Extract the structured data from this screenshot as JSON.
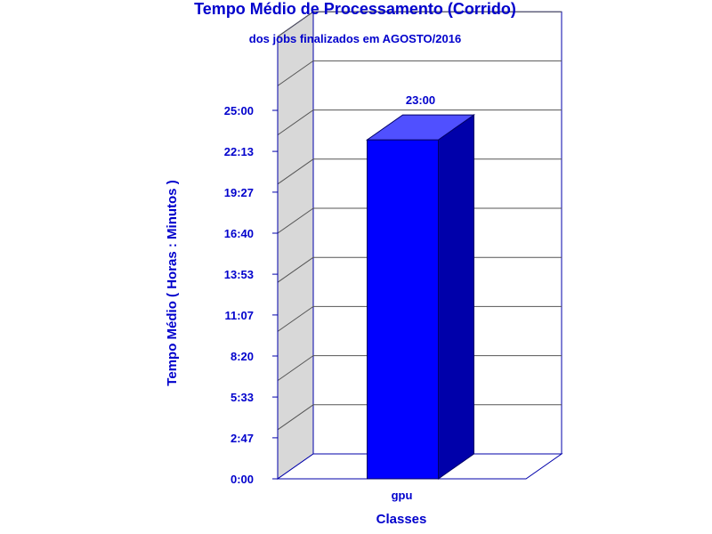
{
  "chart_data": {
    "type": "bar",
    "title": "Tempo Médio de Processamento (Corrido)",
    "subtitle": "dos jobs finalizados em AGOSTO/2016",
    "xlabel": "Classes",
    "ylabel": "Tempo Médio ( Horas : Minutos )",
    "categories": [
      "gpu"
    ],
    "values": [
      23.0
    ],
    "value_labels": [
      "23:00"
    ],
    "y_ticks": [
      0,
      2.7833,
      5.55,
      8.3333,
      11.1167,
      13.8833,
      16.6667,
      19.45,
      22.2167,
      25.0
    ],
    "y_tick_labels": [
      "0:00",
      "2:47",
      "5:33",
      "8:20",
      "11:07",
      "13:53",
      "16:40",
      "19:27",
      "22:13",
      "25:00"
    ],
    "ylim": [
      0,
      30
    ],
    "grid": true,
    "legend": "none",
    "colors": {
      "text": "#0000cc",
      "axis": "#0000aa",
      "grid": "#555555",
      "wall": "#d8d8d8",
      "bar_front": "#0000ff",
      "bar_top": "#5050ff",
      "bar_side": "#0000aa"
    }
  }
}
